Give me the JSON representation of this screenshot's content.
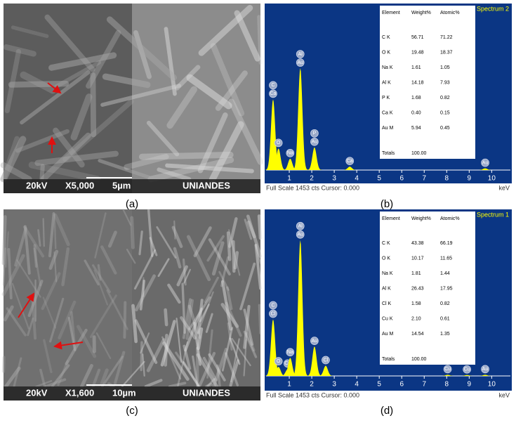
{
  "panels": [
    {
      "label": "(a)",
      "image": {
        "kv": "20kV",
        "mag": "X5,000",
        "scale": "5µm",
        "lab": "UNIANDES"
      }
    },
    {
      "label": "(b)"
    },
    {
      "label": "(c)",
      "image": {
        "kv": "20kV",
        "mag": "X1,600",
        "scale": "10µm",
        "lab": "UNIANDES"
      }
    },
    {
      "label": "(d)"
    }
  ],
  "chart_data": [
    {
      "type": "spectrum",
      "title": "Spectrum 2",
      "footer": "Full Scale 1453 cts Cursor: 0.000",
      "x_label": "keV",
      "x": [
        0.28,
        0.52,
        1.04,
        1.49,
        2.12,
        3.69,
        9.71
      ],
      "values": [
        625,
        190,
        100,
        900,
        200,
        30,
        15
      ],
      "peak_labels": [
        [
          "C",
          "Ca"
        ],
        [
          "O"
        ],
        [
          "Na"
        ],
        [
          "Al",
          "Au"
        ],
        [
          "P",
          "Au"
        ],
        [
          "Ca"
        ],
        [
          "Au"
        ]
      ],
      "color": "#ffff00",
      "background": "#0b3684",
      "xlim": [
        0,
        10.8
      ],
      "xticks": [
        1,
        2,
        3,
        4,
        5,
        6,
        7,
        8,
        9,
        10
      ],
      "ylim": [
        0,
        1453
      ],
      "table": {
        "columns": [
          "Element",
          "Weight%",
          "Atomic%"
        ],
        "rows": [
          [
            "C K",
            "56.71",
            "71.22"
          ],
          [
            "O K",
            "19.48",
            "18.37"
          ],
          [
            "Na K",
            "1.61",
            "1.05"
          ],
          [
            "Al K",
            "14.18",
            "7.93"
          ],
          [
            "P K",
            "1.68",
            "0.82"
          ],
          [
            "Ca K",
            "0.40",
            "0.15"
          ],
          [
            "Au M",
            "5.94",
            "0.45"
          ]
        ],
        "totals": [
          "Totals",
          "100.00"
        ]
      }
    },
    {
      "type": "spectrum",
      "title": "Spectrum 1",
      "footer": "Full Scale 1453 cts Cursor: 0.000",
      "x_label": "keV",
      "x": [
        0.28,
        0.52,
        0.93,
        1.04,
        1.49,
        2.12,
        2.62,
        8.04,
        8.9,
        9.71
      ],
      "values": [
        500,
        80,
        60,
        160,
        1200,
        260,
        90,
        10,
        8,
        10
      ],
      "peak_labels": [
        [
          "C",
          "Cl"
        ],
        [
          "O"
        ],
        [
          "Cu"
        ],
        [
          "Na"
        ],
        [
          "Al",
          "Au"
        ],
        [
          "Au"
        ],
        [
          "Cl"
        ],
        [
          "Cu"
        ],
        [
          "Cu"
        ],
        [
          "Au"
        ]
      ],
      "color": "#ffff00",
      "background": "#0b3684",
      "xlim": [
        0,
        10.8
      ],
      "xticks": [
        1,
        2,
        3,
        4,
        5,
        6,
        7,
        8,
        9,
        10
      ],
      "ylim": [
        0,
        1453
      ],
      "table": {
        "columns": [
          "Element",
          "Weight%",
          "Atomic%"
        ],
        "rows": [
          [
            "C K",
            "43.38",
            "66.19"
          ],
          [
            "O K",
            "10.17",
            "11.65"
          ],
          [
            "Na K",
            "1.81",
            "1.44"
          ],
          [
            "Al K",
            "26.43",
            "17.95"
          ],
          [
            "Cl K",
            "1.58",
            "0.82"
          ],
          [
            "Cu K",
            "2.10",
            "0.61"
          ],
          [
            "Au M",
            "14.54",
            "1.35"
          ]
        ],
        "totals": [
          "Totals",
          "100.00"
        ]
      }
    }
  ]
}
